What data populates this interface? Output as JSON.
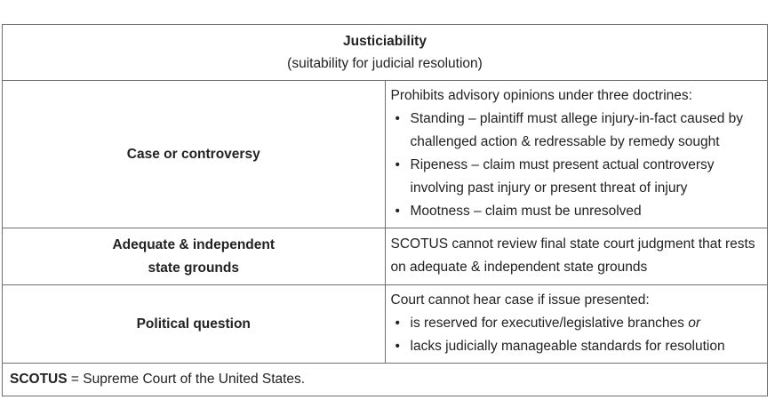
{
  "title": "Justiciability",
  "subtitle": "(suitability for judicial resolution)",
  "rows": [
    {
      "label": "Case or controversy",
      "intro": "Prohibits advisory opinions under three doctrines:",
      "bullets": [
        "Standing – plaintiff must allege injury-in-fact caused by challenged action & redressable by remedy sought",
        "Ripeness – claim must present actual controversy involving past injury or present threat of injury",
        "Mootness – claim must be unresolved"
      ]
    },
    {
      "label_line1": "Adequate & independent",
      "label_line2": "state grounds",
      "text": "SCOTUS cannot review final state court judgment that rests on adequate & independent state grounds"
    },
    {
      "label": "Political question",
      "intro": "Court cannot hear case if issue presented:",
      "bullet1_text": "is reserved for executive/legislative branches ",
      "bullet1_em": "or",
      "bullet2_text": "lacks judicially manageable standards for resolution"
    }
  ],
  "footnote": {
    "abbr": "SCOTUS",
    "definition": " = Supreme Court of the United States."
  },
  "bullet_glyph": "•"
}
